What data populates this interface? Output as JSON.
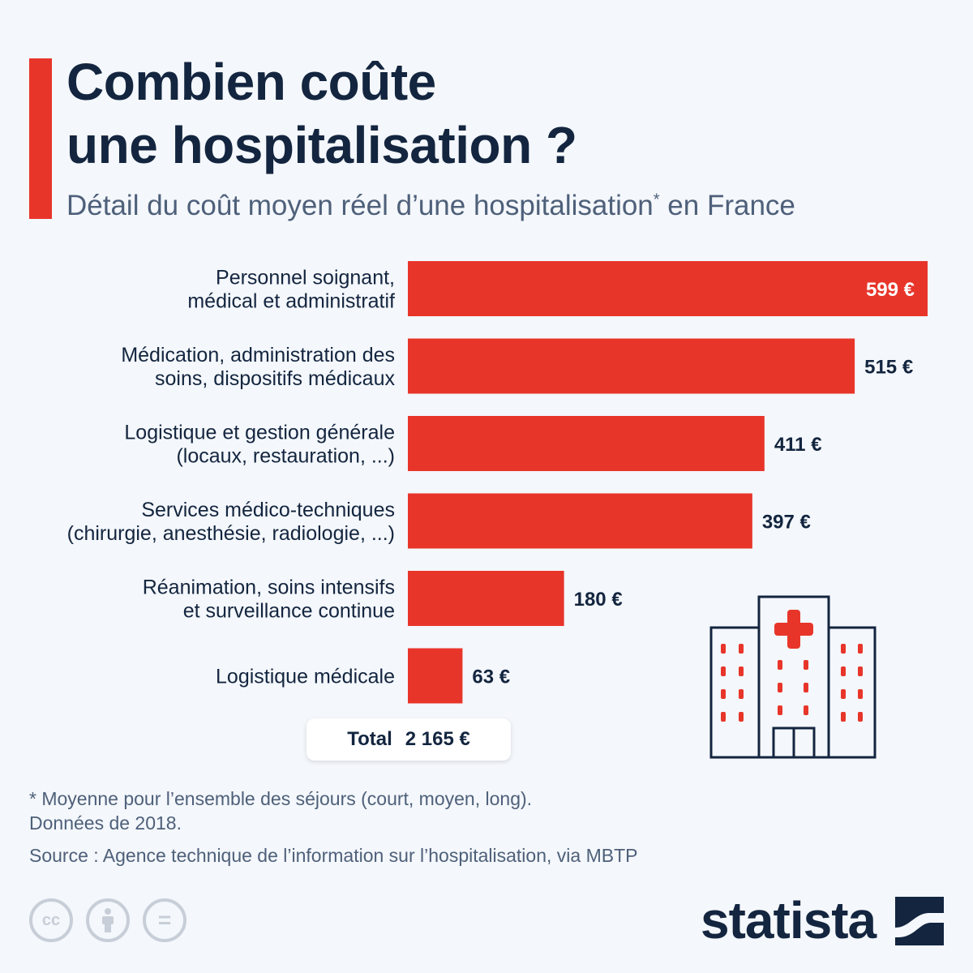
{
  "header": {
    "title_line1": "Combien coûte",
    "title_line2": "une hospitalisation ?",
    "subtitle_main": "Détail du coût moyen réel d’une hospitalisation",
    "subtitle_sup": "*",
    "subtitle_end": " en France"
  },
  "chart_data": {
    "type": "bar",
    "orientation": "horizontal",
    "title": "Combien coûte une hospitalisation ?",
    "subtitle": "Détail du coût moyen réel d’une hospitalisation* en France",
    "categories": [
      [
        "Personnel soignant,",
        "médical et administratif"
      ],
      [
        "Médication, administration des",
        "soins, dispositifs médicaux"
      ],
      [
        "Logistique et gestion générale",
        "(locaux, restauration, ...)"
      ],
      [
        "Services médico-techniques",
        "(chirurgie, anesthésie, radiologie, ...)"
      ],
      [
        "Réanimation, soins intensifs",
        "et surveillance continue"
      ],
      [
        "Logistique médicale"
      ]
    ],
    "values": [
      599,
      515,
      411,
      397,
      180,
      63
    ],
    "value_labels": [
      "599 €",
      "515 €",
      "411 €",
      "397 €",
      "180 €",
      "63 €"
    ],
    "unit": "€",
    "xlim": [
      0,
      599
    ],
    "bar_color": "#e8352a",
    "grid": false,
    "legend": "none"
  },
  "total": {
    "label": "Total",
    "value": "2 165 €"
  },
  "footnote": {
    "line1": "* Moyenne pour l’ensemble des séjours (court, moyen, long).",
    "line2": "Données de 2018."
  },
  "source": "Source : Agence technique de l’information sur l’hospitalisation, via MBTP",
  "license_icons": [
    "creative-commons-icon",
    "attribution-icon",
    "no-derivatives-icon"
  ],
  "license_glyphs": {
    "cc": "cc",
    "nd": "="
  },
  "brand": {
    "name": "statista"
  },
  "illustration": "hospital-icon",
  "colors": {
    "accent": "#e8352a",
    "text": "#13253f",
    "muted": "#4e607a",
    "background": "#f4f7fb"
  }
}
